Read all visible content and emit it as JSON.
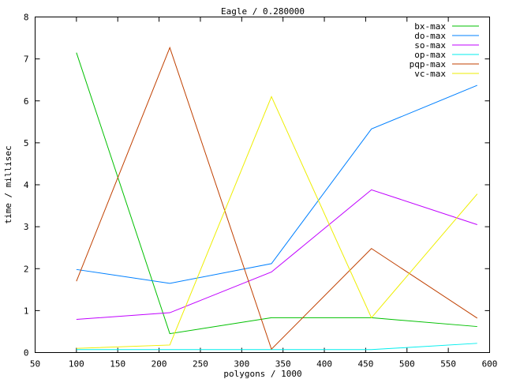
{
  "chart_data": {
    "type": "line",
    "title": "Eagle / 0.280000",
    "xlabel": "polygons / 1000",
    "ylabel": "time / millisec",
    "xlim": [
      50,
      600
    ],
    "ylim": [
      0,
      8
    ],
    "xticks": [
      50,
      100,
      150,
      200,
      250,
      300,
      350,
      400,
      450,
      500,
      550,
      600
    ],
    "yticks": [
      0,
      1,
      2,
      3,
      4,
      5,
      6,
      7,
      8
    ],
    "legend_position": "top-right",
    "grid": false,
    "x": [
      100,
      213,
      336,
      457,
      585
    ],
    "series": [
      {
        "name": "bx-max",
        "color": "#00c000",
        "values": [
          7.15,
          0.45,
          0.83,
          0.83,
          0.62
        ]
      },
      {
        "name": "do-max",
        "color": "#0080ff",
        "values": [
          1.98,
          1.65,
          2.12,
          5.33,
          6.37
        ]
      },
      {
        "name": "so-max",
        "color": "#c000ff",
        "values": [
          0.79,
          0.95,
          1.92,
          3.88,
          3.05
        ]
      },
      {
        "name": "op-max",
        "color": "#00eeee",
        "values": [
          0.07,
          0.07,
          0.07,
          0.07,
          0.22
        ]
      },
      {
        "name": "pqp-max",
        "color": "#c04000",
        "values": [
          1.7,
          7.27,
          0.08,
          2.48,
          0.82
        ]
      },
      {
        "name": "vc-max",
        "color": "#eeee00",
        "values": [
          0.1,
          0.18,
          6.1,
          0.83,
          3.78
        ]
      }
    ]
  }
}
